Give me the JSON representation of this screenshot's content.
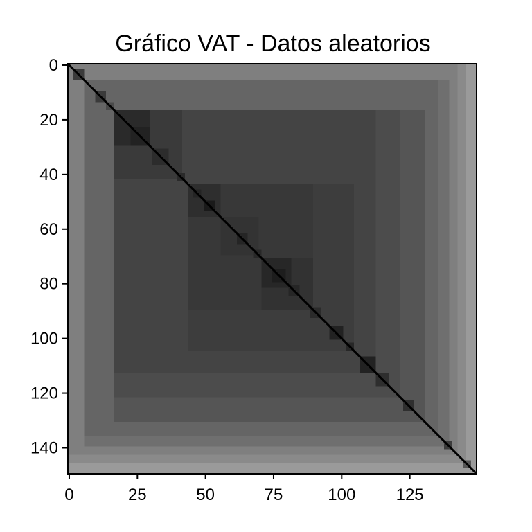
{
  "chart_data": {
    "type": "heatmap",
    "title": "Gráfico VAT - Datos aleatorios",
    "xlabel": "",
    "ylabel": "",
    "n": 150,
    "xlim": [
      0,
      150
    ],
    "ylim": [
      150,
      0
    ],
    "x_ticks": [
      0,
      25,
      50,
      75,
      100,
      125
    ],
    "y_ticks": [
      0,
      20,
      40,
      60,
      80,
      100,
      120,
      140
    ],
    "colormap": "gray",
    "diagonal_color": "#000000",
    "background_color": "#ffffff",
    "blocks": [
      {
        "start": 0,
        "end": 150,
        "gray": "#9a9a9a"
      },
      {
        "start": 0,
        "end": 146,
        "gray": "#8a8a8a"
      },
      {
        "start": 0,
        "end": 143,
        "gray": "#7f7f7f"
      },
      {
        "start": 6,
        "end": 140,
        "gray": "#6f6f6f"
      },
      {
        "start": 6,
        "end": 136,
        "gray": "#656565"
      },
      {
        "start": 17,
        "end": 131,
        "gray": "#555555"
      },
      {
        "start": 17,
        "end": 122,
        "gray": "#4c4c4c"
      },
      {
        "start": 17,
        "end": 113,
        "gray": "#444444"
      },
      {
        "start": 17,
        "end": 42,
        "gray": "#3a3a3a"
      },
      {
        "start": 44,
        "end": 105,
        "gray": "#3d3d3d"
      },
      {
        "start": 44,
        "end": 90,
        "gray": "#383838"
      },
      {
        "start": 71,
        "end": 90,
        "gray": "#323232"
      },
      {
        "start": 44,
        "end": 56,
        "gray": "#2e2e2e"
      },
      {
        "start": 56,
        "end": 70,
        "gray": "#333333"
      },
      {
        "start": 17,
        "end": 30,
        "gray": "#2a2a2a"
      },
      {
        "start": 23,
        "end": 30,
        "gray": "#222222"
      },
      {
        "start": 31,
        "end": 37,
        "gray": "#2c2c2c"
      },
      {
        "start": 40,
        "end": 43,
        "gray": "#2a2a2a"
      },
      {
        "start": 46,
        "end": 49,
        "gray": "#242424"
      },
      {
        "start": 50,
        "end": 54,
        "gray": "#1a1a1a"
      },
      {
        "start": 62,
        "end": 66,
        "gray": "#252525"
      },
      {
        "start": 68,
        "end": 71,
        "gray": "#282828"
      },
      {
        "start": 71,
        "end": 82,
        "gray": "#272727"
      },
      {
        "start": 75,
        "end": 80,
        "gray": "#1d1d1d"
      },
      {
        "start": 81,
        "end": 85,
        "gray": "#262626"
      },
      {
        "start": 89,
        "end": 93,
        "gray": "#2b2b2b"
      },
      {
        "start": 96,
        "end": 101,
        "gray": "#222222"
      },
      {
        "start": 102,
        "end": 105,
        "gray": "#272727"
      },
      {
        "start": 107,
        "end": 113,
        "gray": "#222222"
      },
      {
        "start": 113,
        "end": 118,
        "gray": "#2e2e2e"
      },
      {
        "start": 123,
        "end": 127,
        "gray": "#2f2f2f"
      },
      {
        "start": 138,
        "end": 141,
        "gray": "#3c3c3c"
      },
      {
        "start": 145,
        "end": 148,
        "gray": "#555555"
      },
      {
        "start": 2,
        "end": 6,
        "gray": "#3a3a3a"
      },
      {
        "start": 10,
        "end": 14,
        "gray": "#3a3a3a"
      },
      {
        "start": 14,
        "end": 17,
        "gray": "#4a4a4a"
      }
    ]
  }
}
